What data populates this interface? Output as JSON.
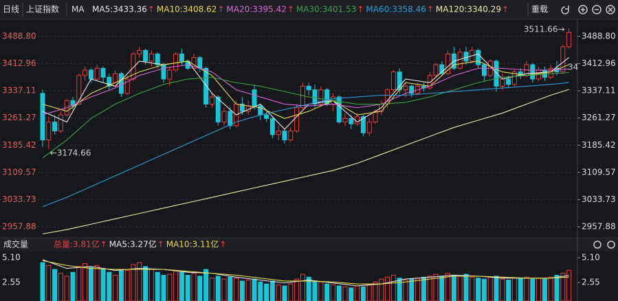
{
  "header": {
    "period": "日线",
    "index_name": "上证指数",
    "indicator": "MA",
    "reload": "重载"
  },
  "chart_data": [
    {
      "type": "candlestick",
      "up_color": "#ee3b3b",
      "down_color": "#19c5d6",
      "open": [
        3330,
        3200,
        3250,
        3225,
        3270,
        3310,
        3300,
        3380,
        3395,
        3370,
        3400,
        3375,
        3350,
        3385,
        3330,
        3370,
        3440,
        3450,
        3420,
        3440,
        3410,
        3370,
        3395,
        3440,
        3420,
        3400,
        3430,
        3400,
        3300,
        3320,
        3250,
        3280,
        3240,
        3300,
        3280,
        3340,
        3295,
        3270,
        3260,
        3215,
        3225,
        3200,
        3225,
        3290,
        3350,
        3340,
        3300,
        3340,
        3300,
        3320,
        3250,
        3260,
        3245,
        3265,
        3220,
        3250,
        3280,
        3300,
        3340,
        3390,
        3340,
        3350,
        3330,
        3350,
        3345,
        3380,
        3410,
        3385,
        3440,
        3400,
        3445,
        3420,
        3450,
        3410,
        3380,
        3420,
        3350,
        3370,
        3355,
        3390,
        3380,
        3410,
        3370,
        3395,
        3375,
        3400,
        3390,
        3460
      ],
      "close": [
        3200,
        3250,
        3225,
        3270,
        3310,
        3295,
        3380,
        3395,
        3370,
        3400,
        3375,
        3350,
        3385,
        3330,
        3370,
        3440,
        3450,
        3420,
        3440,
        3410,
        3370,
        3395,
        3440,
        3420,
        3400,
        3430,
        3400,
        3300,
        3320,
        3250,
        3280,
        3240,
        3300,
        3280,
        3295,
        3295,
        3270,
        3260,
        3215,
        3225,
        3200,
        3225,
        3290,
        3350,
        3340,
        3300,
        3340,
        3300,
        3320,
        3250,
        3260,
        3245,
        3265,
        3220,
        3250,
        3280,
        3300,
        3340,
        3390,
        3340,
        3350,
        3330,
        3350,
        3345,
        3380,
        3410,
        3385,
        3440,
        3400,
        3445,
        3420,
        3450,
        3410,
        3380,
        3420,
        3350,
        3370,
        3355,
        3390,
        3380,
        3410,
        3370,
        3395,
        3375,
        3400,
        3390,
        3460,
        3500
      ],
      "high": [
        3340,
        3265,
        3270,
        3280,
        3315,
        3320,
        3385,
        3405,
        3400,
        3410,
        3405,
        3385,
        3395,
        3390,
        3380,
        3445,
        3460,
        3455,
        3450,
        3445,
        3415,
        3405,
        3445,
        3455,
        3425,
        3440,
        3435,
        3405,
        3330,
        3325,
        3290,
        3290,
        3310,
        3320,
        3310,
        3355,
        3300,
        3280,
        3265,
        3240,
        3230,
        3235,
        3300,
        3360,
        3360,
        3355,
        3350,
        3345,
        3330,
        3325,
        3275,
        3270,
        3275,
        3270,
        3260,
        3285,
        3310,
        3345,
        3395,
        3400,
        3360,
        3355,
        3360,
        3360,
        3390,
        3415,
        3420,
        3450,
        3460,
        3455,
        3460,
        3460,
        3455,
        3415,
        3425,
        3425,
        3385,
        3380,
        3395,
        3400,
        3420,
        3415,
        3405,
        3405,
        3410,
        3420,
        3465,
        3511.66
      ],
      "low": [
        3180,
        3174.66,
        3215,
        3220,
        3265,
        3285,
        3298,
        3365,
        3360,
        3365,
        3360,
        3340,
        3345,
        3320,
        3325,
        3365,
        3430,
        3410,
        3405,
        3400,
        3360,
        3350,
        3390,
        3410,
        3395,
        3395,
        3390,
        3290,
        3290,
        3240,
        3240,
        3230,
        3235,
        3270,
        3270,
        3285,
        3255,
        3250,
        3205,
        3200,
        3190,
        3195,
        3220,
        3285,
        3325,
        3290,
        3295,
        3295,
        3280,
        3245,
        3240,
        3230,
        3240,
        3210,
        3210,
        3245,
        3270,
        3290,
        3335,
        3330,
        3320,
        3320,
        3325,
        3335,
        3340,
        3375,
        3380,
        3380,
        3395,
        3395,
        3410,
        3415,
        3400,
        3365,
        3375,
        3335,
        3340,
        3345,
        3350,
        3370,
        3375,
        3360,
        3365,
        3365,
        3370,
        3380,
        3385,
        3455
      ],
      "ylim": [
        2929.1,
        3523.4
      ],
      "yticks": [
        {
          "value": 3488.8,
          "label": "3488.80"
        },
        3412.96,
        3337.11,
        3261.27,
        3185.42,
        3109.57,
        3033.73,
        2957.88
      ],
      "grid": true,
      "ma_x": [
        0,
        4,
        8,
        12,
        16,
        20,
        24,
        28,
        32,
        36,
        40,
        44,
        48,
        52,
        56,
        60,
        64,
        68,
        72,
        76,
        80,
        84,
        87
      ],
      "series": [
        {
          "name": "MA5:3433.36",
          "trend": "↑",
          "color": "#e8e8e8",
          "values": [
            3280,
            3250,
            3370,
            3350,
            3420,
            3410,
            3420,
            3330,
            3270,
            3300,
            3230,
            3300,
            3310,
            3250,
            3290,
            3370,
            3360,
            3420,
            3440,
            3370,
            3385,
            3390,
            3430
          ]
        },
        {
          "name": "MA10:3408.62",
          "trend": "↑",
          "color": "#e6d94a",
          "values": [
            3300,
            3280,
            3330,
            3360,
            3390,
            3410,
            3420,
            3380,
            3300,
            3290,
            3260,
            3280,
            3310,
            3270,
            3280,
            3360,
            3350,
            3410,
            3420,
            3390,
            3380,
            3390,
            3410
          ]
        },
        {
          "name": "MA20:3395.42",
          "trend": "↑",
          "color": "#d766d6",
          "values": [
            3270,
            3290,
            3320,
            3345,
            3380,
            3400,
            3410,
            3390,
            3340,
            3320,
            3300,
            3295,
            3300,
            3290,
            3300,
            3330,
            3350,
            3380,
            3400,
            3400,
            3395,
            3395,
            3398
          ]
        },
        {
          "name": "MA30:3401.53",
          "trend": "↑",
          "color": "#3aa048",
          "values": [
            3150,
            3200,
            3260,
            3300,
            3330,
            3355,
            3370,
            3375,
            3360,
            3350,
            3335,
            3320,
            3310,
            3300,
            3300,
            3305,
            3320,
            3340,
            3360,
            3375,
            3380,
            3385,
            3388
          ]
        },
        {
          "name": "MA60:3358.46",
          "trend": "↑",
          "color": "#2b9cd8",
          "values": [
            3014,
            3040,
            3070,
            3100,
            3130,
            3160,
            3190,
            3220,
            3250,
            3270,
            3285,
            3300,
            3315,
            3320,
            3325,
            3325,
            3330,
            3335,
            3340,
            3345,
            3350,
            3355,
            3360
          ]
        },
        {
          "name": "MA120:3340.29",
          "trend": "↑",
          "color": "#eeeea8",
          "values": [
            2938,
            2950,
            2965,
            2980,
            2995,
            3010,
            3025,
            3040,
            3055,
            3070,
            3085,
            3100,
            3115,
            3135,
            3160,
            3185,
            3210,
            3235,
            3255,
            3275,
            3300,
            3325,
            3341
          ]
        }
      ],
      "annotations": [
        "3511.66→",
        "←3174.66",
        "34"
      ]
    },
    {
      "type": "bar",
      "title": "成交量",
      "values": [
        4.6,
        4.3,
        3.9,
        3.5,
        3.2,
        3.6,
        4.2,
        4.5,
        4.1,
        4.3,
        4.0,
        3.6,
        3.3,
        3.9,
        3.8,
        4.4,
        4.6,
        4.2,
        3.9,
        3.6,
        3.3,
        3.4,
        3.8,
        3.6,
        3.3,
        3.5,
        3.2,
        3.9,
        3.0,
        3.2,
        2.9,
        3.1,
        3.0,
        2.7,
        2.8,
        2.9,
        2.6,
        2.4,
        2.7,
        2.3,
        2.2,
        2.4,
        2.9,
        3.4,
        3.1,
        2.7,
        2.6,
        2.4,
        2.3,
        2.2,
        2.1,
        2.0,
        2.2,
        2.1,
        2.3,
        2.6,
        2.9,
        3.1,
        3.3,
        3.0,
        2.8,
        2.9,
        3.0,
        3.1,
        3.2,
        3.4,
        3.2,
        3.5,
        3.3,
        3.2,
        3.4,
        3.1,
        3.0,
        2.9,
        3.1,
        3.2,
        2.9,
        2.8,
        3.0,
        3.0,
        3.1,
        2.9,
        3.0,
        2.9,
        3.1,
        3.3,
        3.5,
        3.81
      ],
      "ylim": [
        0.64,
        5.6
      ],
      "yticks": [
        {
          "value": 5.1,
          "label": "5.10"
        },
        2.55
      ],
      "total": {
        "name": "总量:3.81亿",
        "trend": "↑",
        "color": "#ee3b3b"
      },
      "ma_x": [
        0,
        4,
        8,
        12,
        16,
        20,
        24,
        28,
        32,
        36,
        40,
        44,
        48,
        52,
        56,
        60,
        64,
        68,
        72,
        76,
        80,
        84,
        87
      ],
      "series": [
        {
          "name": "MA5:3.27亿",
          "trend": "↑",
          "color": "#e8e8e8",
          "values": [
            4.9,
            4.0,
            4.2,
            3.8,
            4.0,
            3.9,
            3.6,
            3.5,
            3.1,
            2.8,
            2.5,
            2.8,
            2.5,
            2.2,
            2.4,
            2.9,
            3.1,
            3.3,
            3.2,
            3.0,
            3.0,
            3.0,
            3.27
          ]
        },
        {
          "name": "MA10:3.11亿",
          "trend": "↑",
          "color": "#e6d94a",
          "values": [
            4.8,
            4.3,
            4.0,
            3.9,
            3.9,
            3.9,
            3.7,
            3.5,
            3.3,
            3.0,
            2.7,
            2.7,
            2.6,
            2.4,
            2.4,
            2.6,
            2.9,
            3.2,
            3.2,
            3.1,
            3.0,
            3.0,
            3.11
          ]
        }
      ]
    }
  ]
}
